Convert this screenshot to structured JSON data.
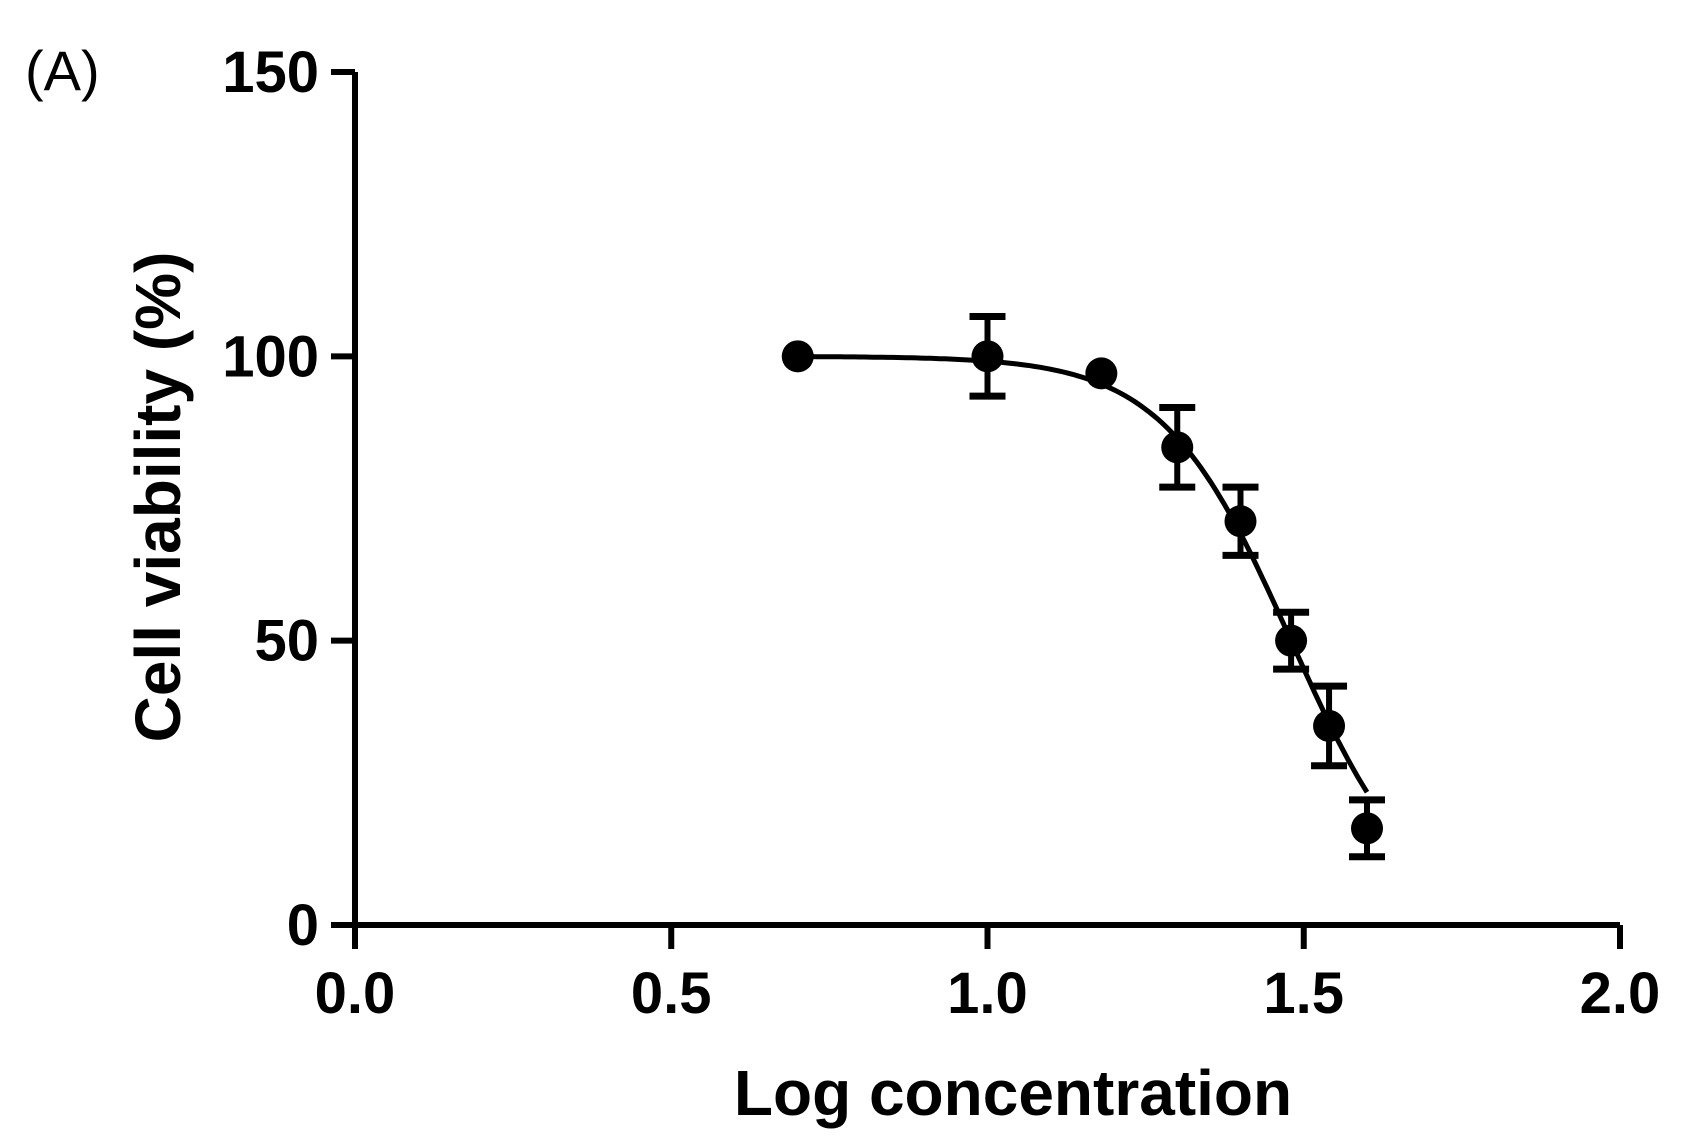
{
  "panel_label": "(A)",
  "chart_data": {
    "type": "scatter",
    "title": "",
    "xlabel": "Log concentration",
    "ylabel": "Cell viability (%)",
    "xlim": [
      0.0,
      2.0
    ],
    "ylim": [
      0,
      150
    ],
    "x_ticks": [
      0.0,
      0.5,
      1.0,
      1.5,
      2.0
    ],
    "x_tick_labels": [
      "0.0",
      "0.5",
      "1.0",
      "1.5",
      "2.0"
    ],
    "y_ticks": [
      0,
      50,
      100,
      150
    ],
    "y_tick_labels": [
      "0",
      "50",
      "100",
      "150"
    ],
    "grid": false,
    "legend": "none",
    "color": "#000000",
    "series": [
      {
        "x": [
          0.7,
          1.0,
          1.18,
          1.3,
          1.4,
          1.48,
          1.54,
          1.6
        ],
        "y": [
          100,
          100,
          97,
          84,
          71,
          50,
          35,
          17
        ],
        "error": [
          0,
          7,
          0,
          7,
          6,
          5,
          7,
          5
        ]
      }
    ],
    "fit_curve": {
      "type": "sigmoid",
      "top": 100,
      "bottom": 0,
      "log_ic50": 1.48,
      "hill_slope": -4.3,
      "x_range": [
        0.7,
        1.6
      ]
    }
  }
}
